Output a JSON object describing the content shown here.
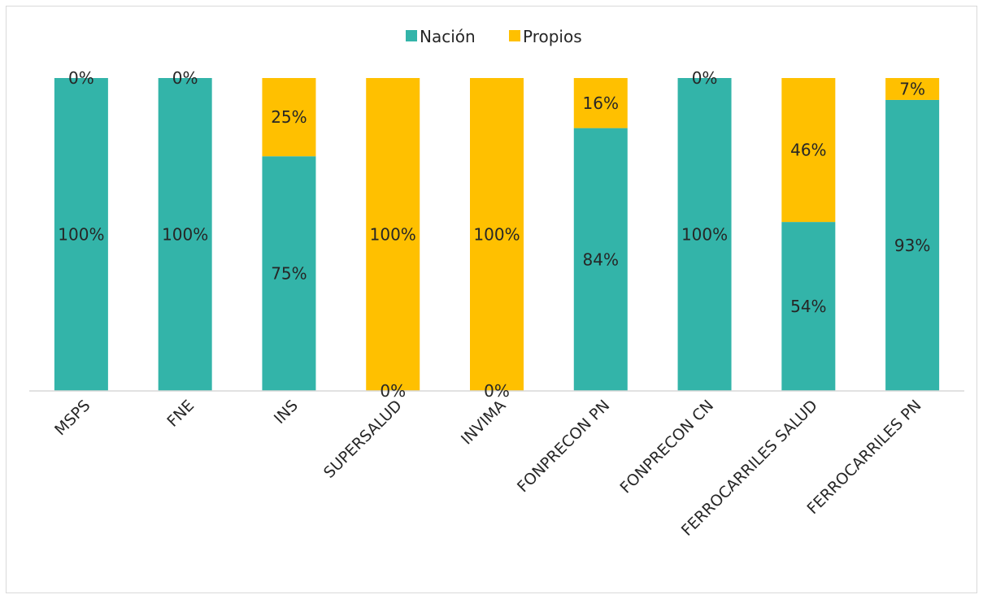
{
  "chart_data": {
    "type": "bar",
    "stacked": true,
    "normalized": true,
    "categories": [
      "MSPS",
      "FNE",
      "INS",
      "SUPERSALUD",
      "INVIMA",
      "FONPRECON PN",
      "FONPRECON CN",
      "FERROCARRILES SALUD",
      "FERROCARRILES PN"
    ],
    "series": [
      {
        "name": "Nación",
        "color": "#33b4a9",
        "values": [
          100,
          100,
          75,
          0,
          0,
          84,
          100,
          54,
          93
        ],
        "labels": [
          "100%",
          "100%",
          "75%",
          "0%",
          "0%",
          "84%",
          "100%",
          "54%",
          "93%"
        ]
      },
      {
        "name": "Propios",
        "color": "#ffc000",
        "values": [
          0,
          0,
          25,
          100,
          100,
          16,
          0,
          46,
          7
        ],
        "labels": [
          "0%",
          "0%",
          "25%",
          "100%",
          "100%",
          "16%",
          "0%",
          "46%",
          "7%"
        ]
      }
    ],
    "ylim": [
      0,
      100
    ],
    "legend_position": "top-center",
    "grid": false
  }
}
